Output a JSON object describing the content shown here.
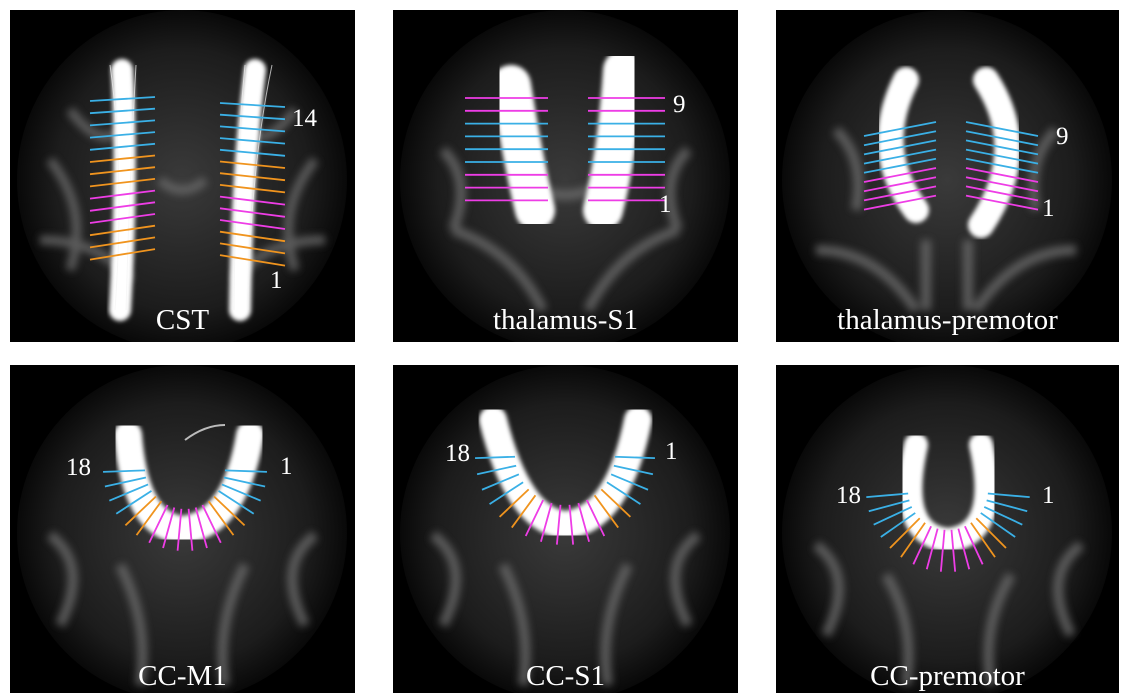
{
  "colors": {
    "blue": "#3ab0e6",
    "orange": "#f0941e",
    "magenta": "#ee3de6",
    "fiber": "#ffffff",
    "background": "#000000"
  },
  "panels": [
    {
      "id": "cst",
      "caption": "CST",
      "labels": [
        "14",
        "1"
      ],
      "segments": 14,
      "bands": [
        "blue",
        "orange",
        "magenta",
        "orange"
      ]
    },
    {
      "id": "thalamus-s1",
      "caption": "thalamus-S1",
      "labels": [
        "9",
        "1"
      ],
      "segments": 9,
      "bands": [
        "magenta",
        "blue",
        "magenta"
      ]
    },
    {
      "id": "thalamus-premotor",
      "caption": "thalamus-premotor",
      "labels": [
        "9",
        "1"
      ],
      "segments": 9,
      "bands": [
        "blue",
        "magenta"
      ]
    },
    {
      "id": "cc-m1",
      "caption": "CC-M1",
      "labels": [
        "18",
        "1"
      ],
      "segments": 18,
      "bands": [
        "blue",
        "orange",
        "magenta",
        "orange",
        "blue"
      ]
    },
    {
      "id": "cc-s1",
      "caption": "CC-S1",
      "labels": [
        "18",
        "1"
      ],
      "segments": 18,
      "bands": [
        "blue",
        "orange",
        "magenta",
        "orange",
        "blue"
      ]
    },
    {
      "id": "cc-premotor",
      "caption": "CC-premotor",
      "labels": [
        "18",
        "1"
      ],
      "segments": 18,
      "bands": [
        "blue",
        "orange",
        "magenta",
        "orange",
        "blue"
      ]
    }
  ]
}
